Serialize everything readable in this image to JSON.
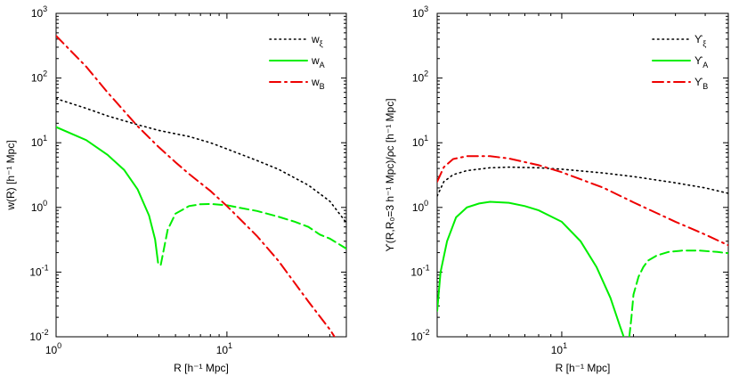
{
  "colors": {
    "xi": "#000000",
    "A": "#00ee00",
    "B": "#ee0000",
    "axes": "#000000",
    "background": "#ffffff"
  },
  "chart_data": [
    {
      "type": "line",
      "xlabel": "R [h⁻¹ Mpc]",
      "ylabel": "w(R) [h⁻¹ Mpc]",
      "xscale": "log",
      "yscale": "log",
      "xlim": [
        1,
        50
      ],
      "ylim": [
        0.01,
        1000
      ],
      "grid": false,
      "legend_position": "top-right",
      "x_ticks": [
        {
          "value": 1,
          "base": "10",
          "exp": "0"
        },
        {
          "value": 10,
          "base": "10",
          "exp": "1"
        }
      ],
      "y_ticks": [
        {
          "value": 0.01,
          "base": "10",
          "exp": "-2"
        },
        {
          "value": 0.1,
          "base": "10",
          "exp": "-1"
        },
        {
          "value": 1,
          "base": "10",
          "exp": "0"
        },
        {
          "value": 10,
          "base": "10",
          "exp": "1"
        },
        {
          "value": 100,
          "base": "10",
          "exp": "2"
        },
        {
          "value": 1000,
          "base": "10",
          "exp": "3"
        }
      ],
      "series": [
        {
          "name": "w_ξ",
          "legend_base": "w",
          "legend_sub": "ξ",
          "color": "#000000",
          "style": "dotted",
          "x": [
            1.0,
            1.5,
            2,
            3,
            4,
            6,
            8,
            10,
            15,
            20,
            30,
            40,
            50
          ],
          "y": [
            48,
            34,
            26,
            19,
            15.5,
            12.5,
            10,
            8,
            5.3,
            3.9,
            2.2,
            1.25,
            0.58
          ]
        },
        {
          "name": "w_A",
          "legend_base": "w",
          "legend_sub": "A",
          "color": "#00ee00",
          "style": "solid",
          "x": [
            1.0,
            1.5,
            2,
            2.5,
            3,
            3.5,
            3.8,
            3.95
          ],
          "y": [
            17.5,
            11,
            6.5,
            3.8,
            1.9,
            0.75,
            0.32,
            0.14
          ]
        },
        {
          "name": "w_A (negative part)",
          "color": "#00ee00",
          "style": "dashed",
          "x": [
            4.1,
            4.5,
            5,
            6,
            7,
            8,
            10,
            12,
            15,
            20,
            25,
            30,
            35,
            40,
            50
          ],
          "y": [
            0.13,
            0.45,
            0.8,
            1.05,
            1.12,
            1.13,
            1.08,
            0.98,
            0.88,
            0.72,
            0.6,
            0.5,
            0.38,
            0.33,
            0.23
          ]
        },
        {
          "name": "w_B",
          "legend_base": "w",
          "legend_sub": "B",
          "color": "#ee0000",
          "style": "dashdot",
          "x": [
            1.0,
            1.5,
            2,
            3,
            4,
            5,
            6,
            8,
            10,
            15,
            20,
            30,
            40,
            45
          ],
          "y": [
            450,
            150,
            60,
            18,
            8.5,
            5,
            3.3,
            1.8,
            1.05,
            0.36,
            0.15,
            0.035,
            0.013,
            0.008
          ]
        }
      ]
    },
    {
      "type": "line",
      "xlabel": "R [h⁻¹ Mpc]",
      "ylabel": "ϒ(R,R₀=3 h⁻¹ Mpc)/ρᴄ [h⁻¹ Mpc]",
      "xscale": "log",
      "yscale": "log",
      "xlim": [
        3,
        50
      ],
      "ylim": [
        0.01,
        1000
      ],
      "grid": false,
      "legend_position": "top-right",
      "x_ticks": [
        {
          "value": 10,
          "base": "10",
          "exp": "1"
        }
      ],
      "y_ticks": [
        {
          "value": 0.01,
          "base": "10",
          "exp": "-2"
        },
        {
          "value": 0.1,
          "base": "10",
          "exp": "-1"
        },
        {
          "value": 1,
          "base": "10",
          "exp": "0"
        },
        {
          "value": 10,
          "base": "10",
          "exp": "1"
        },
        {
          "value": 100,
          "base": "10",
          "exp": "2"
        },
        {
          "value": 1000,
          "base": "10",
          "exp": "3"
        }
      ],
      "series": [
        {
          "name": "ϒ_ξ",
          "legend_base": "ϒ",
          "legend_sub": "ξ",
          "color": "#000000",
          "style": "dotted",
          "x": [
            3.0,
            3.2,
            3.5,
            4,
            5,
            6,
            8,
            10,
            15,
            20,
            30,
            40,
            50
          ],
          "y": [
            1.5,
            2.5,
            3.2,
            3.7,
            4.1,
            4.2,
            4.1,
            3.9,
            3.4,
            3.0,
            2.4,
            2.0,
            1.65
          ]
        },
        {
          "name": "ϒ_A",
          "legend_base": "ϒ",
          "legend_sub": "A",
          "color": "#00ee00",
          "style": "solid",
          "x": [
            3.0,
            3.1,
            3.3,
            3.6,
            4,
            4.5,
            5,
            6,
            7,
            8,
            10,
            12,
            14,
            16,
            17.5,
            18.2
          ],
          "y": [
            0.025,
            0.1,
            0.3,
            0.7,
            1.0,
            1.15,
            1.22,
            1.18,
            1.05,
            0.9,
            0.6,
            0.3,
            0.12,
            0.04,
            0.015,
            0.01
          ]
        },
        {
          "name": "ϒ_A (negative part)",
          "color": "#00ee00",
          "style": "dashed",
          "x": [
            19.2,
            19.6,
            20,
            21,
            22,
            23,
            25,
            28,
            32,
            38,
            45,
            50
          ],
          "y": [
            0.01,
            0.02,
            0.045,
            0.085,
            0.12,
            0.15,
            0.18,
            0.205,
            0.215,
            0.215,
            0.205,
            0.195
          ]
        },
        {
          "name": "ϒ_B",
          "legend_base": "ϒ",
          "legend_sub": "B",
          "color": "#ee0000",
          "style": "dashdot",
          "x": [
            3.0,
            3.2,
            3.5,
            4,
            5,
            6,
            8,
            10,
            15,
            20,
            30,
            40,
            50
          ],
          "y": [
            2.5,
            4.2,
            5.6,
            6.2,
            6.2,
            5.7,
            4.5,
            3.5,
            2.0,
            1.2,
            0.6,
            0.38,
            0.26
          ]
        }
      ]
    }
  ]
}
